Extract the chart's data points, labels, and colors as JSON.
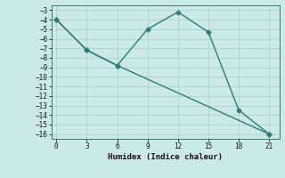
{
  "line1_x": [
    0,
    3,
    6,
    9,
    12,
    15,
    18,
    21
  ],
  "line1_y": [
    -4,
    -7.2,
    -8.8,
    -5,
    -3.2,
    -5.3,
    -13.5,
    -16
  ],
  "line2_x": [
    0,
    3,
    6,
    21
  ],
  "line2_y": [
    -4,
    -7.2,
    -8.8,
    -16
  ],
  "color": "#2d7d72",
  "bg_color": "#cce9e9",
  "grid_color": "#aed0d0",
  "xlabel": "Humidex (Indice chaleur)",
  "ylim": [
    -16.5,
    -2.5
  ],
  "xlim": [
    -0.5,
    22.0
  ],
  "yticks": [
    -3,
    -4,
    -5,
    -6,
    -7,
    -8,
    -9,
    -10,
    -11,
    -12,
    -13,
    -14,
    -15,
    -16
  ],
  "xticks": [
    0,
    3,
    6,
    9,
    12,
    15,
    18,
    21
  ],
  "marker": "D",
  "markersize": 2.5,
  "linewidth": 1.0
}
